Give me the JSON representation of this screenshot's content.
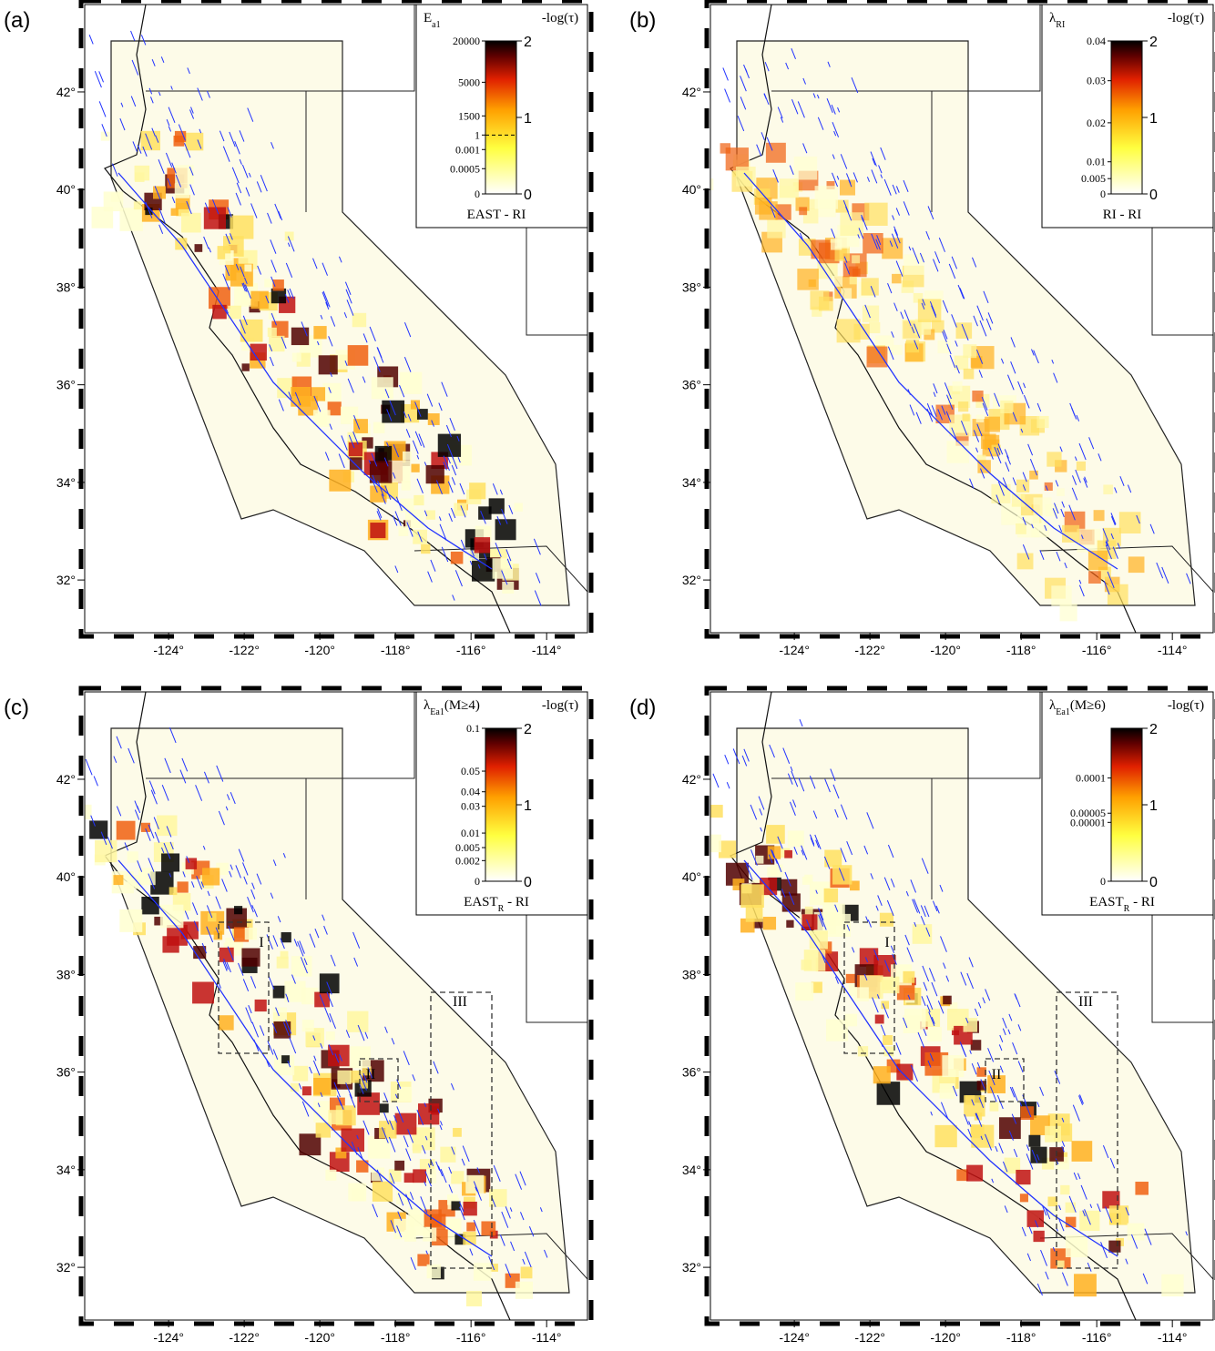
{
  "figure": {
    "lat_range": [
      30.92,
      43.79
    ],
    "lon_range": [
      -126.22,
      -112.92
    ],
    "lat_ticks": [
      {
        "value": 32,
        "label": "32°"
      },
      {
        "value": 34,
        "label": "34°"
      },
      {
        "value": 36,
        "label": "36°"
      },
      {
        "value": 38,
        "label": "38°"
      },
      {
        "value": 40,
        "label": "40°"
      },
      {
        "value": 42,
        "label": "42°"
      }
    ],
    "lon_ticks": [
      {
        "value": -124,
        "label": "-124°"
      },
      {
        "value": -122,
        "label": "-122°"
      },
      {
        "value": -120,
        "label": "-120°"
      },
      {
        "value": -118,
        "label": "-118°"
      },
      {
        "value": -116,
        "label": "-116°"
      },
      {
        "value": -114,
        "label": "-114°"
      }
    ],
    "panels": [
      {
        "label": "(a)",
        "colorbar": {
          "title": [
            {
              "text": "E"
            },
            {
              "text": "a1",
              "sub": true
            }
          ],
          "scale_label": "-log(τ)",
          "scale_range": [
            0,
            2
          ],
          "scale_ticks": [
            0,
            1,
            2
          ],
          "ticks": [
            {
              "value": 20000,
              "label": "20000",
              "level": 2
            },
            {
              "value": 5000,
              "label": "5000",
              "level": 1.46
            },
            {
              "value": 1500,
              "label": "1500",
              "level": 1.02
            },
            {
              "value": 1,
              "label": "1",
              "level": 0.77,
              "dashed_line": true
            },
            {
              "value": 0.001,
              "label": "0.001",
              "level": 0.58
            },
            {
              "value": 0.0005,
              "label": "0.0005",
              "level": 0.33
            },
            {
              "value": 0,
              "label": "0",
              "level": 0
            }
          ],
          "caption": [
            {
              "text": "EAST - RI"
            }
          ]
        },
        "boxes": []
      },
      {
        "label": "(b)",
        "colorbar": {
          "title": [
            {
              "text": "λ"
            },
            {
              "text": "RI",
              "sub": true
            }
          ],
          "scale_label": "-log(τ)",
          "scale_range": [
            0,
            2
          ],
          "scale_ticks": [
            0,
            1,
            2
          ],
          "ticks": [
            {
              "value": 0.04,
              "label": "0.04",
              "level": 2
            },
            {
              "value": 0.03,
              "label": "0.03",
              "level": 1.48
            },
            {
              "value": 0.02,
              "label": "0.02",
              "level": 0.93
            },
            {
              "value": 0.01,
              "label": "0.01",
              "level": 0.42
            },
            {
              "value": 0.005,
              "label": "0.005",
              "level": 0.2
            },
            {
              "value": 0,
              "label": "0",
              "level": 0
            }
          ],
          "caption": [
            {
              "text": "RI - RI"
            }
          ]
        },
        "boxes": []
      },
      {
        "label": "(c)",
        "colorbar": {
          "title": [
            {
              "text": "λ"
            },
            {
              "text": "Ea1",
              "sub": true
            },
            {
              "text": "(M≥4)"
            }
          ],
          "scale_label": "-log(τ)",
          "scale_range": [
            0,
            2
          ],
          "scale_ticks": [
            0,
            1,
            2
          ],
          "ticks": [
            {
              "value": 0.1,
              "label": "0.1",
              "level": 2
            },
            {
              "value": 0.05,
              "label": "0.05",
              "level": 1.44
            },
            {
              "value": 0.04,
              "label": "0.04",
              "level": 1.17
            },
            {
              "value": 0.03,
              "label": "0.03",
              "level": 0.98
            },
            {
              "value": 0.01,
              "label": "0.01",
              "level": 0.63
            },
            {
              "value": 0.005,
              "label": "0.005",
              "level": 0.44
            },
            {
              "value": 0.002,
              "label": "0.002",
              "level": 0.27
            },
            {
              "value": 0,
              "label": "0",
              "level": 0
            }
          ],
          "caption": [
            {
              "text": "EAST"
            },
            {
              "text": "R",
              "sub": true
            },
            {
              "text": " - RI"
            }
          ]
        },
        "boxes": [
          {
            "label": "I"
          },
          {
            "label": "II"
          },
          {
            "label": "III"
          }
        ]
      },
      {
        "label": "(d)",
        "colorbar": {
          "title": [
            {
              "text": "λ"
            },
            {
              "text": "Ea1",
              "sub": true
            },
            {
              "text": "(M≥6)"
            }
          ],
          "scale_label": "-log(τ)",
          "scale_range": [
            0,
            2
          ],
          "scale_ticks": [
            0,
            1,
            2
          ],
          "ticks": [
            {
              "value": 0.0001,
              "label": "0.0001",
              "level": 1.35
            },
            {
              "value": 5e-05,
              "label": "0.00005",
              "level": 0.89
            },
            {
              "value": 1e-05,
              "label": "0.00001",
              "level": 0.77
            },
            {
              "value": 0,
              "label": "0",
              "level": 0
            }
          ],
          "caption": [
            {
              "text": "EAST"
            },
            {
              "text": "R",
              "sub": true
            },
            {
              "text": " - RI"
            }
          ]
        },
        "boxes": [
          {
            "label": "I"
          },
          {
            "label": "II"
          },
          {
            "label": "III"
          }
        ]
      }
    ]
  }
}
